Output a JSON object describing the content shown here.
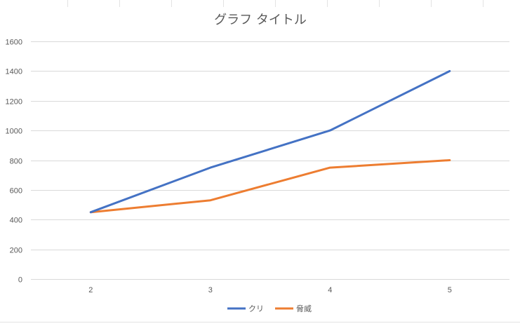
{
  "chart_data": {
    "type": "line",
    "title": "グラフ タイトル",
    "xlabel": "",
    "ylabel": "",
    "categories": [
      "2",
      "3",
      "4",
      "5"
    ],
    "ylim": [
      0,
      1600
    ],
    "yticks": [
      0,
      200,
      400,
      600,
      800,
      1000,
      1200,
      1400,
      1600
    ],
    "grid": true,
    "legend_position": "bottom",
    "series": [
      {
        "name": "クリ",
        "color": "#4472c4",
        "values": [
          450,
          750,
          1000,
          1400
        ]
      },
      {
        "name": "脅威",
        "color": "#ed7d31",
        "values": [
          450,
          530,
          750,
          800
        ]
      }
    ]
  }
}
